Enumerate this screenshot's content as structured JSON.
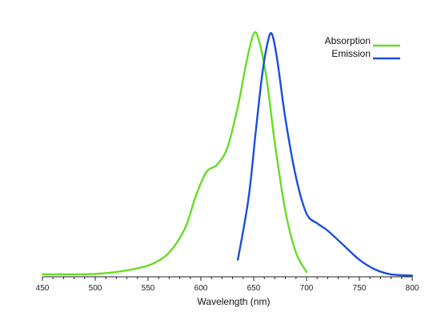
{
  "chart_data": {
    "type": "line",
    "title": "",
    "xlabel": "Wavelength (nm)",
    "ylabel": "",
    "xlim": [
      450,
      800
    ],
    "ylim": [
      0,
      1
    ],
    "xticks": [
      450,
      500,
      550,
      600,
      650,
      700,
      750,
      800
    ],
    "grid": false,
    "legend_position": "top-right",
    "series": [
      {
        "name": "Absorption",
        "color": "#66dd22",
        "points": [
          [
            450,
            0.01
          ],
          [
            480,
            0.01
          ],
          [
            500,
            0.012
          ],
          [
            520,
            0.02
          ],
          [
            540,
            0.035
          ],
          [
            555,
            0.055
          ],
          [
            570,
            0.1
          ],
          [
            585,
            0.2
          ],
          [
            595,
            0.33
          ],
          [
            605,
            0.43
          ],
          [
            615,
            0.46
          ],
          [
            625,
            0.53
          ],
          [
            635,
            0.7
          ],
          [
            643,
            0.88
          ],
          [
            650,
            1.0
          ],
          [
            655,
            0.97
          ],
          [
            662,
            0.82
          ],
          [
            670,
            0.55
          ],
          [
            680,
            0.27
          ],
          [
            690,
            0.1
          ],
          [
            700,
            0.02
          ]
        ]
      },
      {
        "name": "Emission",
        "color": "#1a4fdc",
        "points": [
          [
            635,
            0.07
          ],
          [
            645,
            0.32
          ],
          [
            652,
            0.6
          ],
          [
            658,
            0.83
          ],
          [
            663,
            0.96
          ],
          [
            667,
            1.0
          ],
          [
            672,
            0.9
          ],
          [
            680,
            0.65
          ],
          [
            690,
            0.41
          ],
          [
            700,
            0.26
          ],
          [
            710,
            0.22
          ],
          [
            720,
            0.19
          ],
          [
            735,
            0.13
          ],
          [
            750,
            0.07
          ],
          [
            765,
            0.03
          ],
          [
            780,
            0.01
          ],
          [
            800,
            0.005
          ]
        ]
      }
    ]
  }
}
